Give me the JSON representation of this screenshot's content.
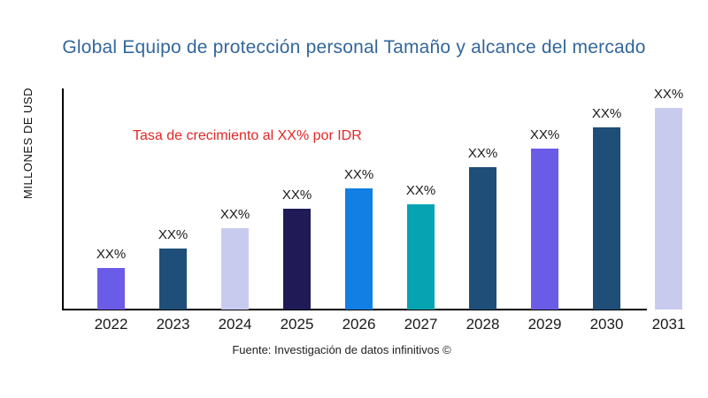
{
  "title": {
    "text": "Global Equipo de protección personal Tamaño y alcance del mercado",
    "color": "#33679B"
  },
  "annotation": {
    "text": "Tasa de crecimiento al XX% por IDR",
    "color": "#E12727"
  },
  "footer": {
    "text": "Fuente: Investigación de datos infinitivos ©"
  },
  "chart_data": {
    "type": "bar",
    "title": "Global Equipo de protección personal Tamaño y alcance del mercado",
    "xlabel": "",
    "ylabel": "MILLONES DE USD",
    "categories": [
      "2022",
      "2023",
      "2024",
      "2025",
      "2026",
      "2027",
      "2028",
      "2029",
      "2030",
      "2031"
    ],
    "values": [
      47,
      69,
      92,
      114,
      137,
      119,
      161,
      182,
      206,
      228
    ],
    "values_note": "numeric magnitudes masked in chart; bars labeled XX%, heights read in px from baseline",
    "bar_value_labels": [
      "XX%",
      "XX%",
      "XX%",
      "XX%",
      "XX%",
      "XX%",
      "XX%",
      "XX%",
      "XX%",
      "XX%"
    ],
    "bar_colors": [
      "#6B5CE8",
      "#1F4E79",
      "#C9CBEE",
      "#201B57",
      "#117FE3",
      "#06A3B2",
      "#1F4E79",
      "#6B5CE8",
      "#1F4E79",
      "#C9CBEE"
    ],
    "ylim": [
      0,
      250
    ],
    "grid": false,
    "legend": false,
    "annotation": "Tasa de crecimiento al XX% por IDR"
  }
}
